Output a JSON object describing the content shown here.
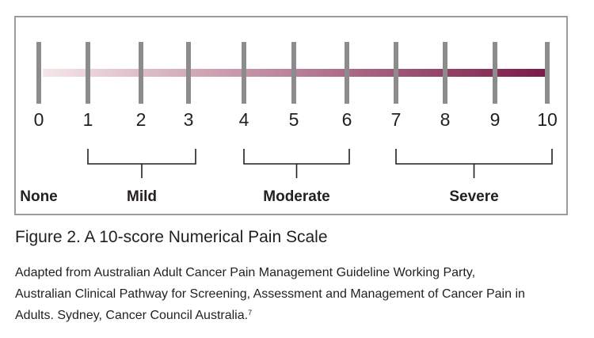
{
  "scale": {
    "ticks": [
      {
        "value": 0,
        "label": "0"
      },
      {
        "value": 1,
        "label": "1"
      },
      {
        "value": 2,
        "label": "2"
      },
      {
        "value": 3,
        "label": "3"
      },
      {
        "value": 4,
        "label": "4"
      },
      {
        "value": 5,
        "label": "5"
      },
      {
        "value": 6,
        "label": "6"
      },
      {
        "value": 7,
        "label": "7"
      },
      {
        "value": 8,
        "label": "8"
      },
      {
        "value": 9,
        "label": "9"
      },
      {
        "value": 10,
        "label": "10"
      }
    ],
    "categories": [
      {
        "name": "None",
        "range": [
          0,
          0
        ]
      },
      {
        "name": "Mild",
        "range": [
          1,
          3
        ]
      },
      {
        "name": "Moderate",
        "range": [
          4,
          6
        ]
      },
      {
        "name": "Severe",
        "range": [
          7,
          10
        ]
      }
    ],
    "colors": {
      "tick": "#8c8c8c",
      "gradient_start": "#f6e6e8",
      "gradient_end": "#7a1a48",
      "bracket": "#231f20",
      "frame": "#9b9b9b"
    }
  },
  "figure": {
    "title": "Figure 2. A 10-score Numerical Pain Scale",
    "caption_lines": [
      "Adapted from Australian Adult Cancer Pain Management Guideline Working Party,",
      "Australian Clinical Pathway for Screening, Assessment and Management of Cancer Pain in",
      "Adults. Sydney, Cancer Council Australia."
    ],
    "caption_reference": "7"
  }
}
